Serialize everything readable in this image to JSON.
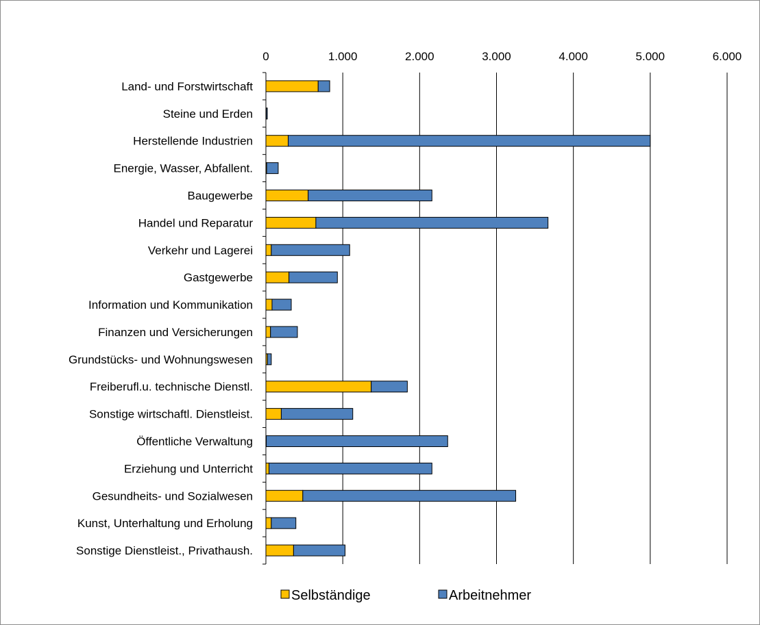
{
  "chart_data": {
    "type": "bar",
    "orientation": "horizontal",
    "stacked": true,
    "title": "",
    "xlabel": "",
    "ylabel": "",
    "xlim": [
      0,
      6000
    ],
    "x_ticks": [
      0,
      1000,
      2000,
      3000,
      4000,
      5000,
      6000
    ],
    "x_tick_labels": [
      "0",
      "1.000",
      "2.000",
      "3.000",
      "4.000",
      "5.000",
      "6.000"
    ],
    "x_axis_position": "top",
    "grid": "vertical major gridlines",
    "legend_position": "bottom",
    "categories": [
      "Land- und Forstwirtschaft",
      "Steine und Erden",
      "Herstellende Industrien",
      "Energie, Wasser, Abfallent.",
      "Baugewerbe",
      "Handel und Reparatur",
      "Verkehr und Lagerei",
      "Gastgewerbe",
      "Information und Kommunikation",
      "Finanzen und Versicherungen",
      "Grundstücks- und Wohnungswesen",
      "Freiberufl.u. technische Dienstl.",
      "Sonstige wirtschaftl. Dienstleist.",
      "Öffentliche Verwaltung",
      "Erziehung und Unterricht",
      "Gesundheits- und Sozialwesen",
      "Kunst, Unterhaltung und Erholung",
      "Sonstige Dienstleist., Privathaush."
    ],
    "series": [
      {
        "name": "Selbständige",
        "color": "#FFC000",
        "values": [
          680,
          5,
          290,
          10,
          550,
          650,
          70,
          300,
          80,
          60,
          20,
          1370,
          200,
          5,
          40,
          480,
          70,
          360
        ]
      },
      {
        "name": "Arbeitnehmer",
        "color": "#4F81BD",
        "values": [
          150,
          10,
          4710,
          150,
          1610,
          3020,
          1020,
          630,
          250,
          350,
          50,
          470,
          930,
          2360,
          2120,
          2770,
          320,
          670
        ]
      }
    ]
  }
}
